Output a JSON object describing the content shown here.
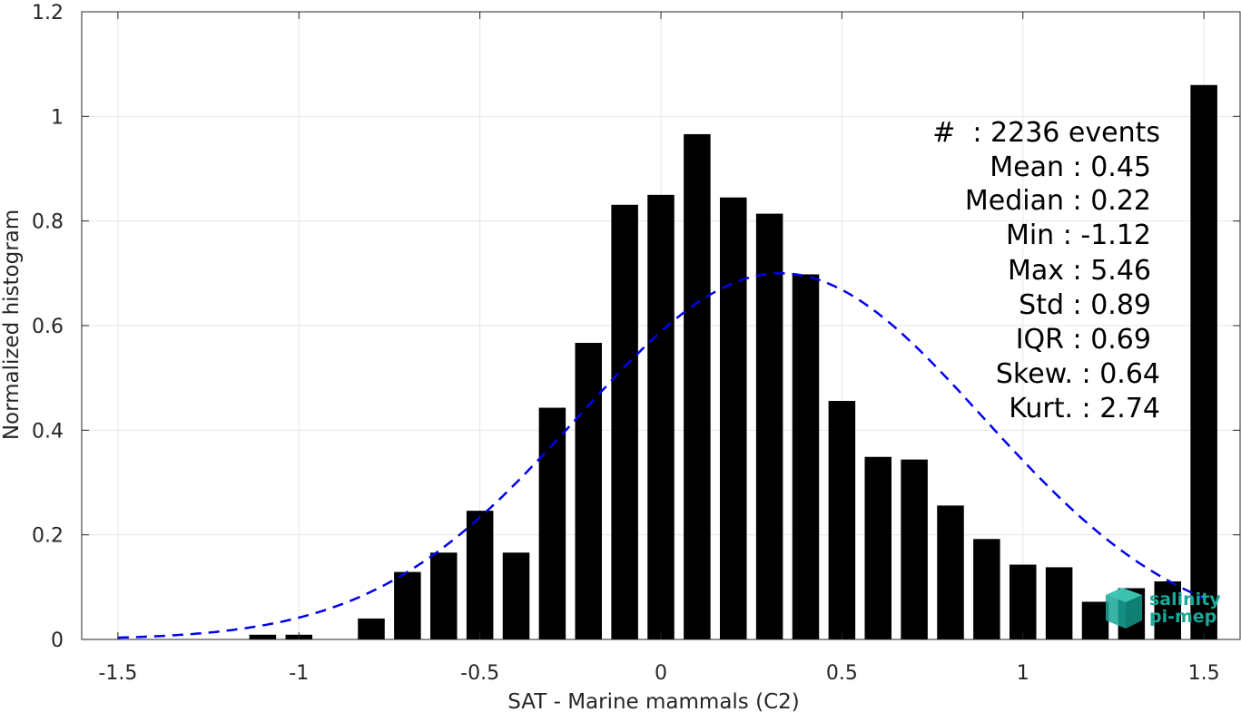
{
  "chart_data": {
    "type": "bar",
    "xlabel": "SAT - Marine mammals (C2)",
    "ylabel": "Normalized histogram",
    "xlim": [
      -1.6,
      1.6
    ],
    "ylim": [
      0,
      1.2
    ],
    "grid": true,
    "x_ticks": [
      "-1.5",
      "-1",
      "-0.5",
      "0",
      "0.5",
      "1",
      "1.5"
    ],
    "y_ticks": [
      "0",
      "0.2",
      "0.4",
      "0.6",
      "0.8",
      "1",
      "1.2"
    ],
    "bar_color": "#000000",
    "bin_width": 0.1,
    "x": [
      -1.5,
      -1.4,
      -1.3,
      -1.2,
      -1.1,
      -1.0,
      -0.9,
      -0.8,
      -0.7,
      -0.6,
      -0.5,
      -0.4,
      -0.3,
      -0.2,
      -0.1,
      0.0,
      0.1,
      0.2,
      0.3,
      0.4,
      0.5,
      0.6,
      0.7,
      0.8,
      0.9,
      1.0,
      1.1,
      1.2,
      1.3,
      1.4,
      1.5
    ],
    "values": [
      0,
      0,
      0,
      0,
      0.009,
      0.009,
      0,
      0.04,
      0.129,
      0.166,
      0.246,
      0.166,
      0.443,
      0.567,
      0.831,
      0.85,
      0.966,
      0.845,
      0.814,
      0.698,
      0.456,
      0.349,
      0.344,
      0.256,
      0.192,
      0.143,
      0.138,
      0.072,
      0.098,
      0.111,
      1.06
    ],
    "fit_curve": {
      "type": "normal",
      "mean": 0.33,
      "peak": 0.7,
      "std": 0.56,
      "x_range": [
        -1.5,
        1.5
      ],
      "color": "#0000ee",
      "style": "dashed"
    },
    "stats": {
      "count": "#  : 2236 events",
      "mean": "Mean : 0.45",
      "median": "Median : 0.22",
      "min": "Min : -1.12",
      "max": "Max : 5.46",
      "std": "Std : 0.89",
      "iqr": "IQR : 0.69",
      "skew": "Skew. : 0.64",
      "kurt": "Kurt. : 2.74"
    }
  },
  "logo": {
    "line1": "salinity",
    "line2": "pi-mep",
    "color": "#1aa898"
  }
}
